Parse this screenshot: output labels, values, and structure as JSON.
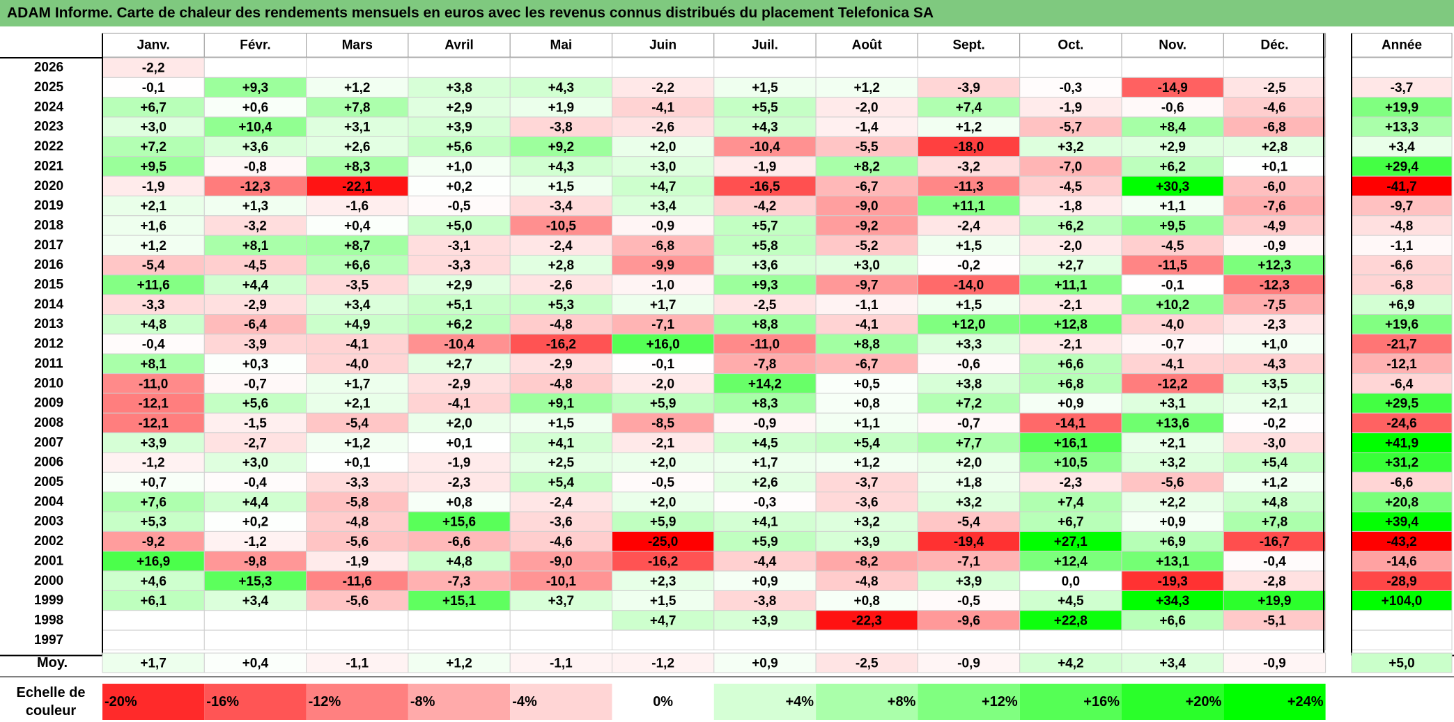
{
  "title": "ADAM Informe. Carte de chaleur des rendements mensuels en euros avec les revenus connus distribués du placement Telefonica SA",
  "chart_data": {
    "type": "heatmap",
    "title": "ADAM Informe. Carte de chaleur des rendements mensuels en euros avec les revenus connus distribués du placement Telefonica SA",
    "months": [
      "Janv.",
      "Févr.",
      "Mars",
      "Avril",
      "Mai",
      "Juin",
      "Juil.",
      "Août",
      "Sept.",
      "Oct.",
      "Nov.",
      "Déc."
    ],
    "year_header": "Année",
    "rows": [
      {
        "year": "2026",
        "values": [
          "-2,2",
          "",
          "",
          "",
          "",
          "",
          "",
          "",
          "",
          "",
          "",
          ""
        ],
        "annual": ""
      },
      {
        "year": "2025",
        "values": [
          "-0,1",
          "+9,3",
          "+1,2",
          "+3,8",
          "+4,3",
          "-2,2",
          "+1,5",
          "+1,2",
          "-3,9",
          "-0,3",
          "-14,9",
          "-2,5"
        ],
        "annual": "-3,7"
      },
      {
        "year": "2024",
        "values": [
          "+6,7",
          "+0,6",
          "+7,8",
          "+2,9",
          "+1,9",
          "-4,1",
          "+5,5",
          "-2,0",
          "+7,4",
          "-1,9",
          "-0,6",
          "-4,6"
        ],
        "annual": "+19,9"
      },
      {
        "year": "2023",
        "values": [
          "+3,0",
          "+10,4",
          "+3,1",
          "+3,9",
          "-3,8",
          "-2,6",
          "+4,3",
          "-1,4",
          "+1,2",
          "-5,7",
          "+8,4",
          "-6,8"
        ],
        "annual": "+13,3"
      },
      {
        "year": "2022",
        "values": [
          "+7,2",
          "+3,6",
          "+2,6",
          "+5,6",
          "+9,2",
          "+2,0",
          "-10,4",
          "-5,5",
          "-18,0",
          "+3,2",
          "+2,9",
          "+2,8"
        ],
        "annual": "+3,4"
      },
      {
        "year": "2021",
        "values": [
          "+9,5",
          "-0,8",
          "+8,3",
          "+1,0",
          "+4,3",
          "+3,0",
          "-1,9",
          "+8,2",
          "-3,2",
          "-7,0",
          "+6,2",
          "+0,1"
        ],
        "annual": "+29,4"
      },
      {
        "year": "2020",
        "values": [
          "-1,9",
          "-12,3",
          "-22,1",
          "+0,2",
          "+1,5",
          "+4,7",
          "-16,5",
          "-6,7",
          "-11,3",
          "-4,5",
          "+30,3",
          "-6,0"
        ],
        "annual": "-41,7"
      },
      {
        "year": "2019",
        "values": [
          "+2,1",
          "+1,3",
          "-1,6",
          "-0,5",
          "-3,4",
          "+3,4",
          "-4,2",
          "-9,0",
          "+11,1",
          "-1,8",
          "+1,1",
          "-7,6"
        ],
        "annual": "-9,7"
      },
      {
        "year": "2018",
        "values": [
          "+1,6",
          "-3,2",
          "+0,4",
          "+5,0",
          "-10,5",
          "-0,9",
          "+5,7",
          "-9,2",
          "-2,4",
          "+6,2",
          "+9,5",
          "-4,9"
        ],
        "annual": "-4,8"
      },
      {
        "year": "2017",
        "values": [
          "+1,2",
          "+8,1",
          "+8,7",
          "-3,1",
          "-2,4",
          "-6,8",
          "+5,8",
          "-5,2",
          "+1,5",
          "-2,0",
          "-4,5",
          "-0,9"
        ],
        "annual": "-1,1"
      },
      {
        "year": "2016",
        "values": [
          "-5,4",
          "-4,5",
          "+6,6",
          "-3,3",
          "+2,8",
          "-9,9",
          "+3,6",
          "+3,0",
          "-0,2",
          "+2,7",
          "-11,5",
          "+12,3"
        ],
        "annual": "-6,6"
      },
      {
        "year": "2015",
        "values": [
          "+11,6",
          "+4,4",
          "-3,5",
          "+2,9",
          "-2,6",
          "-1,0",
          "+9,3",
          "-9,7",
          "-14,0",
          "+11,1",
          "-0,1",
          "-12,3"
        ],
        "annual": "-6,8"
      },
      {
        "year": "2014",
        "values": [
          "-3,3",
          "-2,9",
          "+3,4",
          "+5,1",
          "+5,3",
          "+1,7",
          "-2,5",
          "-1,1",
          "+1,5",
          "-2,1",
          "+10,2",
          "-7,5"
        ],
        "annual": "+6,9"
      },
      {
        "year": "2013",
        "values": [
          "+4,8",
          "-6,4",
          "+4,9",
          "+6,2",
          "-4,8",
          "-7,1",
          "+8,8",
          "-4,1",
          "+12,0",
          "+12,8",
          "-4,0",
          "-2,3"
        ],
        "annual": "+19,6"
      },
      {
        "year": "2012",
        "values": [
          "-0,4",
          "-3,9",
          "-4,1",
          "-10,4",
          "-16,2",
          "+16,0",
          "-11,0",
          "+8,8",
          "+3,3",
          "-2,1",
          "-0,7",
          "+1,0"
        ],
        "annual": "-21,7"
      },
      {
        "year": "2011",
        "values": [
          "+8,1",
          "+0,3",
          "-4,0",
          "+2,7",
          "-2,9",
          "-0,1",
          "-7,8",
          "-6,7",
          "-0,6",
          "+6,6",
          "-4,1",
          "-4,3"
        ],
        "annual": "-12,1"
      },
      {
        "year": "2010",
        "values": [
          "-11,0",
          "-0,7",
          "+1,7",
          "-2,9",
          "-4,8",
          "-2,0",
          "+14,2",
          "+0,5",
          "+3,8",
          "+6,8",
          "-12,2",
          "+3,5"
        ],
        "annual": "-6,4"
      },
      {
        "year": "2009",
        "values": [
          "-12,1",
          "+5,6",
          "+2,1",
          "-4,1",
          "+9,1",
          "+5,9",
          "+8,3",
          "+0,8",
          "+7,2",
          "+0,9",
          "+3,1",
          "+2,1"
        ],
        "annual": "+29,5"
      },
      {
        "year": "2008",
        "values": [
          "-12,1",
          "-1,5",
          "-5,4",
          "+2,0",
          "+1,5",
          "-8,5",
          "-0,9",
          "+1,1",
          "-0,7",
          "-14,1",
          "+13,6",
          "-0,2"
        ],
        "annual": "-24,6"
      },
      {
        "year": "2007",
        "values": [
          "+3,9",
          "-2,7",
          "+1,2",
          "+0,1",
          "+4,1",
          "-2,1",
          "+4,5",
          "+5,4",
          "+7,7",
          "+16,1",
          "+2,1",
          "-3,0"
        ],
        "annual": "+41,9"
      },
      {
        "year": "2006",
        "values": [
          "-1,2",
          "+3,0",
          "+0,1",
          "-1,9",
          "+2,5",
          "+2,0",
          "+1,7",
          "+1,2",
          "+2,0",
          "+10,5",
          "+3,2",
          "+5,4"
        ],
        "annual": "+31,2"
      },
      {
        "year": "2005",
        "values": [
          "+0,7",
          "-0,4",
          "-3,3",
          "-2,3",
          "+5,4",
          "-0,5",
          "+2,6",
          "-3,7",
          "+1,8",
          "-2,3",
          "-5,6",
          "+1,2"
        ],
        "annual": "-6,6"
      },
      {
        "year": "2004",
        "values": [
          "+7,6",
          "+4,4",
          "-5,8",
          "+0,8",
          "-2,4",
          "+2,0",
          "-0,3",
          "-3,6",
          "+3,2",
          "+7,4",
          "+2,2",
          "+4,8"
        ],
        "annual": "+20,8"
      },
      {
        "year": "2003",
        "values": [
          "+5,3",
          "+0,2",
          "-4,8",
          "+15,6",
          "-3,6",
          "+5,9",
          "+4,1",
          "+3,2",
          "-5,4",
          "+6,7",
          "+0,9",
          "+7,8"
        ],
        "annual": "+39,4"
      },
      {
        "year": "2002",
        "values": [
          "-9,2",
          "-1,2",
          "-5,6",
          "-6,6",
          "-4,6",
          "-25,0",
          "+5,9",
          "+3,9",
          "-19,4",
          "+27,1",
          "+6,9",
          "-16,7"
        ],
        "annual": "-43,2"
      },
      {
        "year": "2001",
        "values": [
          "+16,9",
          "-9,8",
          "-1,9",
          "+4,8",
          "-9,0",
          "-16,2",
          "-4,4",
          "-8,2",
          "-7,1",
          "+12,4",
          "+13,1",
          "-0,4"
        ],
        "annual": "-14,6"
      },
      {
        "year": "2000",
        "values": [
          "+4,6",
          "+15,3",
          "-11,6",
          "-7,3",
          "-10,1",
          "+2,3",
          "+0,9",
          "-4,8",
          "+3,9",
          "0,0",
          "-19,3",
          "-2,8"
        ],
        "annual": "-28,9"
      },
      {
        "year": "1999",
        "values": [
          "+6,1",
          "+3,4",
          "-5,6",
          "+15,1",
          "+3,7",
          "+1,5",
          "-3,8",
          "+0,8",
          "-0,5",
          "+4,5",
          "+34,3",
          "+19,9"
        ],
        "annual": "+104,0"
      },
      {
        "year": "1998",
        "values": [
          "",
          "",
          "",
          "",
          "",
          "+4,7",
          "+3,9",
          "-22,3",
          "-9,6",
          "+22,8",
          "+6,6",
          "-5,1"
        ],
        "annual": ""
      },
      {
        "year": "1997",
        "values": [
          "",
          "",
          "",
          "",
          "",
          "",
          "",
          "",
          "",
          "",
          "",
          ""
        ],
        "annual": ""
      }
    ],
    "average": {
      "label": "Moy.",
      "values": [
        "+1,7",
        "+0,4",
        "-1,1",
        "+1,2",
        "-1,1",
        "-1,2",
        "+0,9",
        "-2,5",
        "-0,9",
        "+4,2",
        "+3,4",
        "-0,9"
      ],
      "annual": "+5,0"
    },
    "scale": {
      "label_line1": "Echelle de",
      "label_line2": "couleur",
      "labels": [
        "-20%",
        "-16%",
        "-12%",
        "-8%",
        "-4%",
        "0%",
        "+4%",
        "+8%",
        "+12%",
        "+16%",
        "+20%",
        "+24%"
      ],
      "values": [
        -20,
        -16,
        -12,
        -8,
        -4,
        0,
        4,
        8,
        12,
        16,
        20,
        24
      ]
    },
    "colors": {
      "negative_max": "#ff0000",
      "positive_max": "#00ff00",
      "neutral": "#ffffff",
      "title_bar": "#7fc97f"
    }
  }
}
